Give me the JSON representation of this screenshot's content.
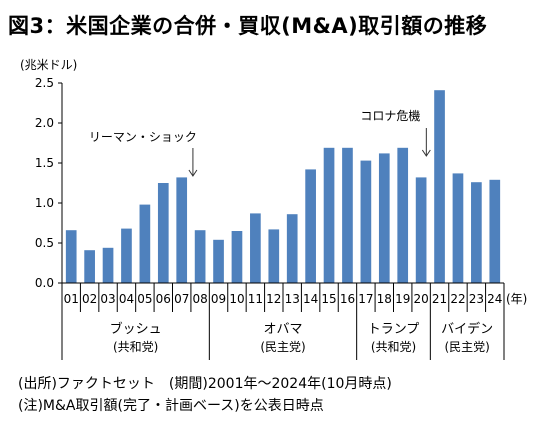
{
  "chart_data": {
    "type": "bar",
    "title": "図3：米国企業の合併・買収(M&A)取引額の推移",
    "ylabel": "(兆米ドル)",
    "xlabel": "(年)",
    "ylim": [
      0,
      2.5
    ],
    "yticks": [
      "0.0",
      "0.5",
      "1.0",
      "1.5",
      "2.0",
      "2.5"
    ],
    "grid": false,
    "bar_color": "#4f81bd",
    "categories": [
      "01",
      "02",
      "03",
      "04",
      "05",
      "06",
      "07",
      "08",
      "09",
      "10",
      "11",
      "12",
      "13",
      "14",
      "15",
      "16",
      "17",
      "18",
      "19",
      "20",
      "21",
      "22",
      "23",
      "24"
    ],
    "values": [
      0.66,
      0.41,
      0.44,
      0.68,
      0.98,
      1.25,
      1.32,
      0.66,
      0.54,
      0.65,
      0.87,
      0.67,
      0.86,
      1.42,
      1.69,
      1.69,
      1.53,
      1.62,
      1.69,
      1.32,
      2.41,
      1.37,
      1.26,
      1.29
    ],
    "annotations": [
      {
        "text": "リーマン・ショック",
        "category": "07"
      },
      {
        "text": "コロナ危機",
        "category": "20"
      }
    ],
    "groups": [
      {
        "name": "ブッシュ",
        "party": "(共和党)",
        "start": 0,
        "end": 7
      },
      {
        "name": "オバマ",
        "party": "(民主党)",
        "start": 8,
        "end": 15
      },
      {
        "name": "トランプ",
        "party": "(共和党)",
        "start": 16,
        "end": 19
      },
      {
        "name": "バイデン",
        "party": "(民主党)",
        "start": 20,
        "end": 23
      }
    ]
  },
  "notes": {
    "source": "(出所)ファクトセット　(期間)2001年～2024年(10月時点)",
    "note": "(注)M&A取引額(完了・計画ベース)を公表日時点"
  }
}
